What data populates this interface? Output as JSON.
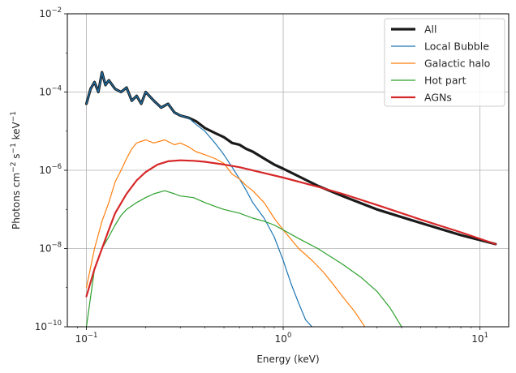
{
  "chart_data": {
    "type": "line",
    "xlabel": "Energy (keV)",
    "ylabel_base": "Photons cm",
    "ylabel_exp1": "−2",
    "ylabel_mid": " s",
    "ylabel_exp2": "−1",
    "ylabel_end": " keV",
    "ylabel_exp3": "−1",
    "x_scale": "log",
    "y_scale": "log",
    "xlim": [
      0.08,
      14
    ],
    "ylim": [
      1e-10,
      0.01
    ],
    "grid": true,
    "legend_position": "top-right",
    "x_ticks": [
      {
        "value": 0.1,
        "base": "10",
        "exp": "−1"
      },
      {
        "value": 1,
        "base": "10",
        "exp": "0"
      },
      {
        "value": 10,
        "base": "10",
        "exp": "1"
      }
    ],
    "y_ticks": [
      {
        "value": 1e-10,
        "base": "10",
        "exp": "−10"
      },
      {
        "value": 1e-08,
        "base": "10",
        "exp": "−8"
      },
      {
        "value": 1e-06,
        "base": "10",
        "exp": "−6"
      },
      {
        "value": 0.0001,
        "base": "10",
        "exp": "−4"
      },
      {
        "value": 0.01,
        "base": "10",
        "exp": "−2"
      }
    ],
    "series": [
      {
        "name": "All",
        "color": "#1a1a1a",
        "width": 3.2,
        "x": [
          0.1,
          0.105,
          0.11,
          0.115,
          0.12,
          0.125,
          0.13,
          0.14,
          0.15,
          0.16,
          0.17,
          0.18,
          0.19,
          0.2,
          0.22,
          0.24,
          0.26,
          0.28,
          0.3,
          0.33,
          0.36,
          0.4,
          0.45,
          0.5,
          0.55,
          0.6,
          0.65,
          0.7,
          0.8,
          0.9,
          1.0,
          1.2,
          1.5,
          2.0,
          3.0,
          5.0,
          8.0,
          12.0
        ],
        "y": [
          5e-05,
          0.00012,
          0.00018,
          0.0001,
          0.00032,
          0.00015,
          0.0002,
          0.00012,
          0.0001,
          0.00013,
          6e-05,
          8e-05,
          5e-05,
          0.0001,
          6e-05,
          4e-05,
          5e-05,
          3e-05,
          2.5e-05,
          2.2e-05,
          1.8e-05,
          1.2e-05,
          9e-06,
          7e-06,
          5e-06,
          4.5e-06,
          3.5e-06,
          3e-06,
          2e-06,
          1.4e-06,
          1.1e-06,
          7e-07,
          4e-07,
          2.2e-07,
          1e-07,
          4.5e-08,
          2.2e-08,
          1.3e-08
        ]
      },
      {
        "name": "Local Bubble",
        "color": "#1f77b4",
        "width": 1.2,
        "x": [
          0.1,
          0.105,
          0.11,
          0.115,
          0.12,
          0.125,
          0.13,
          0.14,
          0.15,
          0.16,
          0.17,
          0.18,
          0.19,
          0.2,
          0.22,
          0.24,
          0.26,
          0.28,
          0.3,
          0.33,
          0.36,
          0.4,
          0.45,
          0.5,
          0.55,
          0.6,
          0.65,
          0.7,
          0.8,
          0.9,
          1.0,
          1.1,
          1.2,
          1.3,
          1.4
        ],
        "y": [
          5e-05,
          0.00012,
          0.00018,
          0.0001,
          0.00032,
          0.00015,
          0.0002,
          0.00012,
          0.0001,
          0.00013,
          6e-05,
          8e-05,
          5e-05,
          0.0001,
          6e-05,
          4e-05,
          5e-05,
          3e-05,
          2.5e-05,
          2.2e-05,
          1.5e-05,
          1e-05,
          5e-06,
          2.5e-06,
          1.2e-06,
          6e-07,
          3e-07,
          1.5e-07,
          6e-08,
          2e-08,
          5e-09,
          1.2e-09,
          4e-10,
          1.5e-10,
          1e-10
        ]
      },
      {
        "name": "Galactic halo",
        "color": "#ff7f0e",
        "width": 1.2,
        "x": [
          0.1,
          0.11,
          0.12,
          0.13,
          0.14,
          0.15,
          0.16,
          0.17,
          0.18,
          0.2,
          0.22,
          0.25,
          0.28,
          0.3,
          0.33,
          0.36,
          0.4,
          0.45,
          0.5,
          0.55,
          0.6,
          0.65,
          0.7,
          0.8,
          0.9,
          1.0,
          1.2,
          1.4,
          1.6,
          1.8,
          2.0,
          2.3,
          2.6
        ],
        "y": [
          1e-09,
          1e-08,
          5e-08,
          1.5e-07,
          5e-07,
          1e-06,
          2e-06,
          3.5e-06,
          5e-06,
          6e-06,
          5e-06,
          6e-06,
          4.5e-06,
          5e-06,
          4e-06,
          3e-06,
          2.5e-06,
          2e-06,
          1.5e-06,
          8e-07,
          6e-07,
          4e-07,
          3e-07,
          1.5e-07,
          6e-08,
          3e-08,
          1e-08,
          5e-09,
          2.5e-09,
          1.2e-09,
          6e-10,
          2.5e-10,
          1e-10
        ]
      },
      {
        "name": "Hot part",
        "color": "#2ca02c",
        "width": 1.2,
        "x": [
          0.1,
          0.11,
          0.12,
          0.13,
          0.14,
          0.15,
          0.16,
          0.18,
          0.2,
          0.22,
          0.25,
          0.28,
          0.3,
          0.35,
          0.4,
          0.45,
          0.5,
          0.6,
          0.7,
          0.8,
          0.9,
          1.0,
          1.2,
          1.5,
          2.0,
          2.5,
          3.0,
          3.5,
          4.0
        ],
        "y": [
          1e-10,
          3e-09,
          1e-08,
          2e-08,
          4e-08,
          7e-08,
          1e-07,
          1.5e-07,
          2e-07,
          2.5e-07,
          3e-07,
          2.5e-07,
          2.2e-07,
          2e-07,
          1.5e-07,
          1.2e-07,
          1e-07,
          8e-08,
          6e-08,
          5e-08,
          4e-08,
          3e-08,
          1.8e-08,
          1e-08,
          4e-09,
          1.8e-09,
          8e-10,
          3e-10,
          1e-10
        ]
      },
      {
        "name": "AGNs",
        "color": "#d62728",
        "width": 2.2,
        "x": [
          0.1,
          0.11,
          0.12,
          0.13,
          0.14,
          0.16,
          0.18,
          0.2,
          0.23,
          0.26,
          0.3,
          0.35,
          0.4,
          0.5,
          0.6,
          0.8,
          1.0,
          1.5,
          2.0,
          3.0,
          5.0,
          8.0,
          12.0
        ],
        "y": [
          6e-10,
          3e-09,
          1e-08,
          3e-08,
          8e-08,
          2.5e-07,
          5.5e-07,
          9e-07,
          1.4e-06,
          1.7e-06,
          1.8e-06,
          1.75e-06,
          1.65e-06,
          1.4e-06,
          1.2e-06,
          8.5e-07,
          6.5e-07,
          3.8e-07,
          2.5e-07,
          1.3e-07,
          5.5e-08,
          2.6e-08,
          1.3e-08
        ]
      }
    ]
  }
}
